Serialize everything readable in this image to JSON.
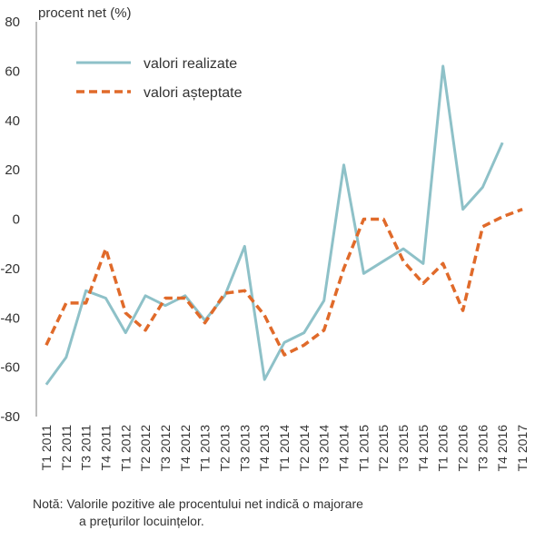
{
  "chart_data": {
    "type": "line",
    "ylabel": "procent net (%)",
    "xlabel": "",
    "ylim": [
      -80,
      80
    ],
    "yticks": [
      80,
      60,
      40,
      20,
      0,
      -20,
      -40,
      -60,
      -80
    ],
    "grid": false,
    "legend_placement": "top-left",
    "categories": [
      "T1 2011",
      "T2 2011",
      "T3 2011",
      "T4 2011",
      "T1 2012",
      "T2 2012",
      "T3 2012",
      "T4 2012",
      "T1 2013",
      "T2 2013",
      "T3 2013",
      "T4 2013",
      "T1 2014",
      "T2 2014",
      "T3 2014",
      "T4 2014",
      "T1 2015",
      "T2 2015",
      "T3 2015",
      "T4 2015",
      "T1 2016",
      "T2 2016",
      "T3 2016",
      "T4 2016",
      "T1 2017"
    ],
    "series": [
      {
        "name": "valori realizate",
        "style": "solid",
        "color": "#8ec1c8",
        "values": [
          -67,
          -56,
          -29,
          -32,
          -46,
          -31,
          -35,
          -31,
          -41,
          -31,
          -11,
          -65,
          -50,
          -46,
          -33,
          22,
          -22,
          -17,
          -12,
          -18,
          62,
          4,
          13,
          31,
          null
        ]
      },
      {
        "name": "valori așteptate",
        "style": "dashed",
        "color": "#e06a2a",
        "values": [
          -51,
          -34,
          -34,
          -12,
          -38,
          -45,
          -32,
          -32,
          -42,
          -30,
          -29,
          -39,
          -55,
          -51,
          -45,
          -20,
          0,
          0,
          -17,
          -26,
          -18,
          -37,
          -3,
          1,
          4
        ]
      }
    ]
  },
  "note": {
    "line1": "Notă: Valorile pozitive ale procentului net indică o majorare",
    "line2": "a prețurilor locuințelor."
  }
}
